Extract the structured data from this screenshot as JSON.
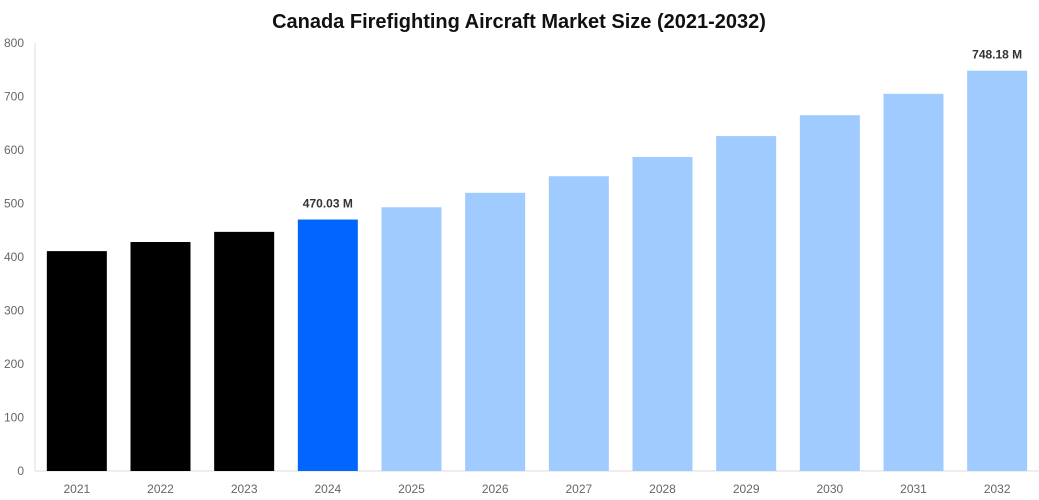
{
  "chart_data": {
    "type": "bar",
    "title": "Canada Firefighting Aircraft Market Size (2021-2032)",
    "xlabel": "",
    "ylabel": "",
    "ylim": [
      0,
      800
    ],
    "yticks": [
      0,
      100,
      200,
      300,
      400,
      500,
      600,
      700,
      800
    ],
    "grid": false,
    "categories": [
      "2021",
      "2022",
      "2023",
      "2024",
      "2025",
      "2026",
      "2027",
      "2028",
      "2029",
      "2030",
      "2031",
      "2032"
    ],
    "values": [
      411,
      428,
      447,
      470.03,
      493,
      520,
      551,
      587,
      626,
      665,
      705,
      748.18
    ],
    "bar_colors": [
      "#000000",
      "#000000",
      "#000000",
      "#0066ff",
      "#a0cbff",
      "#a0cbff",
      "#a0cbff",
      "#a0cbff",
      "#a0cbff",
      "#a0cbff",
      "#a0cbff",
      "#a0cbff"
    ],
    "data_labels": {
      "3": "470.03 M",
      "11": "748.18 M"
    }
  }
}
